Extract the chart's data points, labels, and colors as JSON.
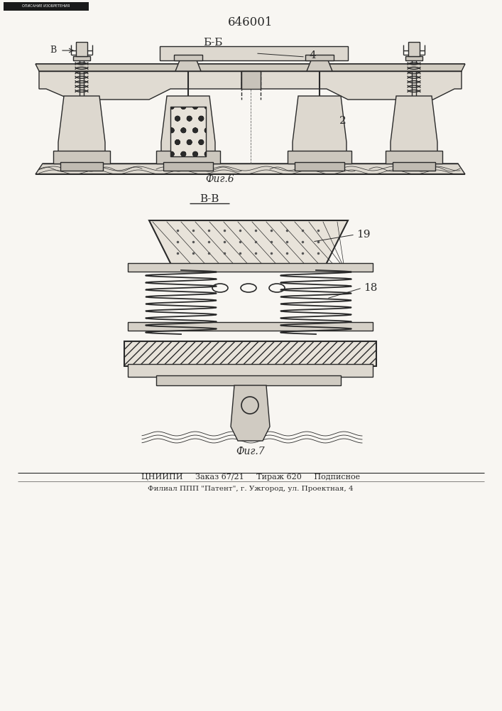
{
  "patent_number": "646001",
  "fig_b_label": "Б-Б",
  "fig_v_label": "В-В",
  "fig6_label": "Фиг.6",
  "fig7_label": "Фиг.7",
  "label_4": "4",
  "label_2": "2",
  "label_19": "19",
  "label_18": "18",
  "label_b_arrow": "В",
  "footer_line1": "ЦНИИПИ     Заказ 67/21     Тираж 620     Подписное",
  "footer_line2": "Филиал ППП \"Патент\", г. Ужгород, ул. Проектная, 4",
  "bg_color": "#f8f6f2",
  "line_color": "#2a2a2a",
  "paper_color": "#e8e4dc"
}
